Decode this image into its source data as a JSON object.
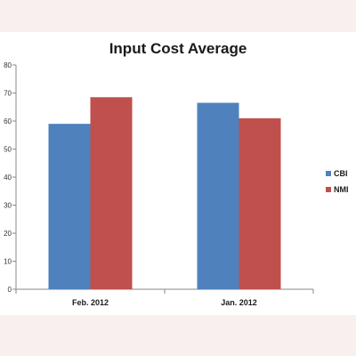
{
  "chart_data": {
    "type": "bar",
    "title": "Input Cost Average",
    "xlabel": "",
    "ylabel": "",
    "categories": [
      "Feb. 2012",
      "Jan. 2012"
    ],
    "series": [
      {
        "name": "CBI",
        "values": [
          59,
          66.5
        ],
        "color": "#4f81bd"
      },
      {
        "name": "NMI",
        "values": [
          68.5,
          61
        ],
        "color": "#c0504d"
      }
    ],
    "ylim": [
      0,
      80
    ],
    "yticks": [
      0,
      10,
      20,
      30,
      40,
      50,
      60,
      70,
      80
    ],
    "grid": false,
    "legend_position": "right"
  }
}
